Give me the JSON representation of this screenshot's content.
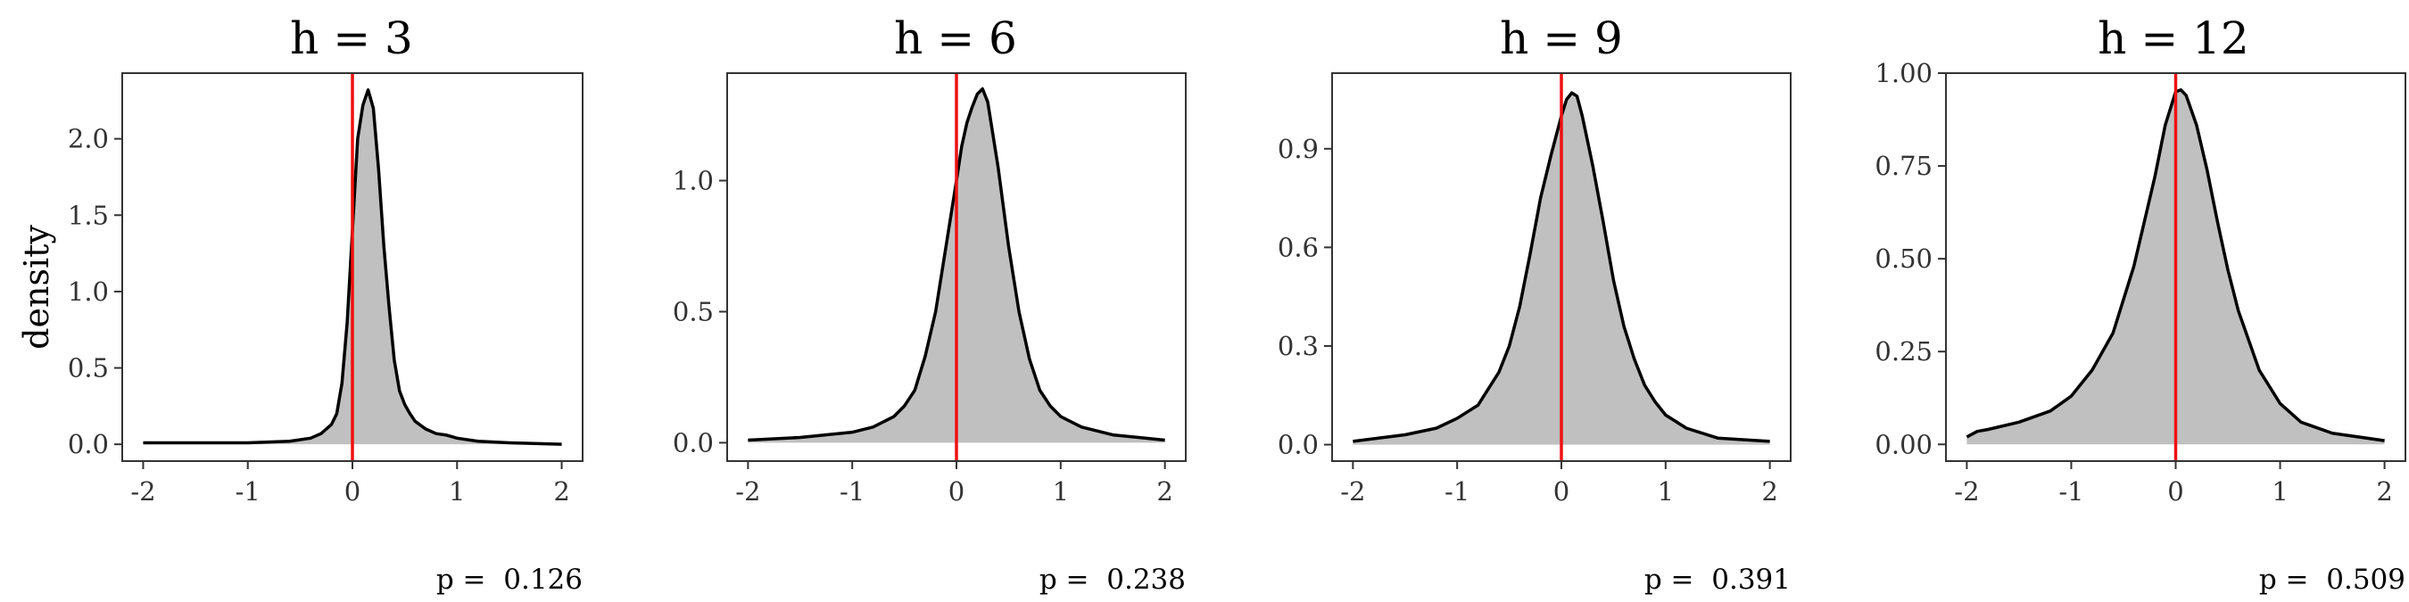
{
  "ylabel": "density",
  "colors": {
    "fill": "#c0c0c0",
    "line": "#000000",
    "refline": "#ee1111",
    "frame": "#333333"
  },
  "chart_data": [
    {
      "type": "area",
      "title": "h = 3",
      "xlim": [
        -2.2,
        2.2
      ],
      "ylim": [
        -0.11,
        2.43
      ],
      "xticks": [
        -2,
        -1,
        0,
        1,
        2
      ],
      "yticks": [
        "0.0",
        "0.5",
        "1.0",
        "1.5",
        "2.0"
      ],
      "vline": 0,
      "p_label": "p =",
      "p_value": "0.126",
      "x": [
        -2,
        -1.5,
        -1,
        -0.6,
        -0.4,
        -0.3,
        -0.2,
        -0.15,
        -0.1,
        -0.05,
        0,
        0.05,
        0.1,
        0.15,
        0.2,
        0.25,
        0.3,
        0.35,
        0.4,
        0.45,
        0.5,
        0.55,
        0.6,
        0.7,
        0.8,
        0.9,
        1,
        1.2,
        1.5,
        2
      ],
      "y": [
        0.01,
        0.01,
        0.01,
        0.02,
        0.04,
        0.07,
        0.13,
        0.2,
        0.4,
        0.8,
        1.4,
        2.0,
        2.22,
        2.32,
        2.2,
        1.8,
        1.3,
        0.9,
        0.55,
        0.35,
        0.26,
        0.2,
        0.15,
        0.1,
        0.07,
        0.06,
        0.04,
        0.02,
        0.01,
        0.0
      ]
    },
    {
      "type": "area",
      "title": "h = 6",
      "xlim": [
        -2.2,
        2.2
      ],
      "ylim": [
        -0.07,
        1.41
      ],
      "xticks": [
        -2,
        -1,
        0,
        1,
        2
      ],
      "yticks": [
        "0.0",
        "0.5",
        "1.0"
      ],
      "vline": 0,
      "p_label": "p =",
      "p_value": "0.238",
      "x": [
        -2,
        -1.5,
        -1,
        -0.8,
        -0.7,
        -0.6,
        -0.5,
        -0.4,
        -0.3,
        -0.2,
        -0.1,
        0,
        0.05,
        0.1,
        0.15,
        0.2,
        0.25,
        0.3,
        0.4,
        0.5,
        0.6,
        0.7,
        0.8,
        0.9,
        1,
        1.2,
        1.5,
        2
      ],
      "y": [
        0.01,
        0.02,
        0.04,
        0.06,
        0.08,
        0.1,
        0.14,
        0.2,
        0.33,
        0.5,
        0.75,
        1.0,
        1.13,
        1.22,
        1.28,
        1.33,
        1.35,
        1.3,
        1.05,
        0.75,
        0.5,
        0.32,
        0.2,
        0.14,
        0.1,
        0.06,
        0.03,
        0.01
      ]
    },
    {
      "type": "area",
      "title": "h = 9",
      "xlim": [
        -2.2,
        2.2
      ],
      "ylim": [
        -0.05,
        1.13
      ],
      "xticks": [
        -2,
        -1,
        0,
        1,
        2
      ],
      "yticks": [
        "0.0",
        "0.3",
        "0.6",
        "0.9"
      ],
      "vline": 0,
      "p_label": "p =",
      "p_value": "0.391",
      "x": [
        -2,
        -1.5,
        -1.2,
        -1,
        -0.8,
        -0.6,
        -0.5,
        -0.4,
        -0.3,
        -0.2,
        -0.1,
        0,
        0.05,
        0.1,
        0.15,
        0.2,
        0.3,
        0.4,
        0.5,
        0.6,
        0.7,
        0.8,
        0.9,
        1,
        1.2,
        1.5,
        2
      ],
      "y": [
        0.01,
        0.03,
        0.05,
        0.08,
        0.12,
        0.22,
        0.3,
        0.42,
        0.58,
        0.75,
        0.88,
        1.0,
        1.05,
        1.07,
        1.06,
        1.0,
        0.85,
        0.68,
        0.5,
        0.36,
        0.26,
        0.18,
        0.13,
        0.09,
        0.05,
        0.02,
        0.01
      ]
    },
    {
      "type": "area",
      "title": "h = 12",
      "xlim": [
        -2.2,
        2.2
      ],
      "ylim": [
        -0.045,
        1.0
      ],
      "xticks": [
        -2,
        -1,
        0,
        1,
        2
      ],
      "yticks": [
        "0.00",
        "0.25",
        "0.50",
        "0.75",
        "1.00"
      ],
      "vline": 0,
      "p_label": "p =",
      "p_value": "0.509",
      "x": [
        -2,
        -1.9,
        -1.8,
        -1.5,
        -1.2,
        -1,
        -0.8,
        -0.6,
        -0.4,
        -0.2,
        -0.1,
        0,
        0.05,
        0.1,
        0.2,
        0.3,
        0.4,
        0.5,
        0.6,
        0.8,
        1,
        1.2,
        1.5,
        2
      ],
      "y": [
        0.02,
        0.035,
        0.04,
        0.06,
        0.09,
        0.13,
        0.2,
        0.3,
        0.48,
        0.72,
        0.86,
        0.95,
        0.955,
        0.94,
        0.86,
        0.74,
        0.6,
        0.47,
        0.36,
        0.2,
        0.11,
        0.06,
        0.03,
        0.01
      ]
    }
  ]
}
